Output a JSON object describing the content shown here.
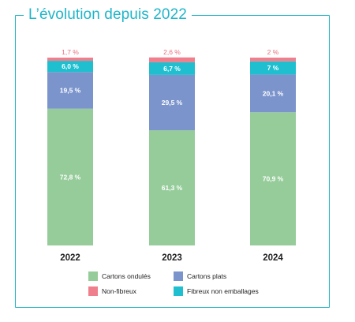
{
  "title": "L’évolution depuis 2022",
  "chart_data": {
    "type": "bar",
    "stacked": true,
    "categories": [
      "2022",
      "2023",
      "2024"
    ],
    "series": [
      {
        "name": "Cartons ondulés",
        "color": "#95cc9a",
        "values": [
          72.8,
          61.3,
          70.9
        ],
        "labels": [
          "72,8 %",
          "61,3 %",
          "70,9 %"
        ]
      },
      {
        "name": "Cartons plats",
        "color": "#7b94cc",
        "values": [
          19.5,
          29.5,
          20.1
        ],
        "labels": [
          "19,5 %",
          "29,5 %",
          "20,1 %"
        ]
      },
      {
        "name": "Fibreux non emballages",
        "color": "#1fbfd0",
        "values": [
          6.0,
          6.7,
          7.0
        ],
        "labels": [
          "6,0 %",
          "6,7 %",
          "7 %"
        ]
      },
      {
        "name": "Non-fibreux",
        "color": "#ef7f8c",
        "values": [
          1.7,
          2.6,
          2.0
        ],
        "labels": [
          "1,7 %",
          "2,6 %",
          "2 %"
        ]
      }
    ],
    "ylim": [
      0,
      100
    ],
    "legend_position": "bottom"
  },
  "legend": [
    {
      "name": "Cartons ondulés",
      "color": "#95cc9a"
    },
    {
      "name": "Cartons plats",
      "color": "#7b94cc"
    },
    {
      "name": "Non-fibreux",
      "color": "#ef7f8c"
    },
    {
      "name": "Fibreux non emballages",
      "color": "#1fbfd0"
    }
  ]
}
